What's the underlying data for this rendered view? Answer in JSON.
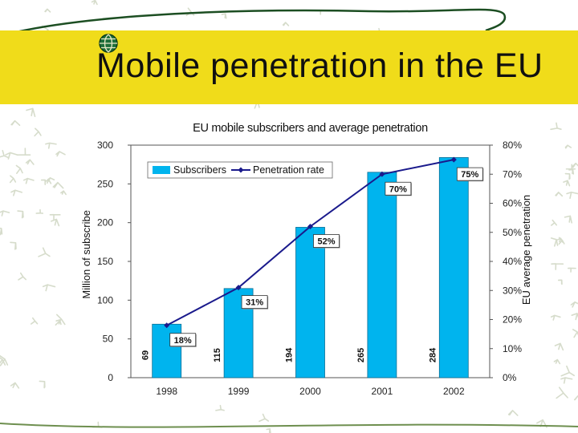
{
  "slide": {
    "title": "Mobile penetration in the EU"
  },
  "colors": {
    "band": "#f0dc1a",
    "bar": "#00b4ee",
    "line": "#1a1a8c",
    "doodle": "#d6dccb"
  },
  "chart_data": {
    "type": "bar",
    "title": "EU mobile subscribers and average penetration",
    "categories": [
      "1998",
      "1999",
      "2000",
      "2001",
      "2002"
    ],
    "series": [
      {
        "name": "Subscribers",
        "type": "bar",
        "axis": "left",
        "values": [
          69,
          115,
          194,
          265,
          284
        ],
        "labels": [
          "69",
          "115",
          "194",
          "265",
          "284"
        ]
      },
      {
        "name": "Penetration rate",
        "type": "line",
        "axis": "right",
        "values": [
          18,
          31,
          52,
          70,
          75
        ],
        "labels": [
          "18%",
          "31%",
          "52%",
          "70%",
          "75%"
        ]
      }
    ],
    "ylabel": "Million of subscribe",
    "y2label": "EU average penetration",
    "ylim": [
      0,
      300
    ],
    "y2lim": [
      0,
      80
    ],
    "yticks": [
      "0",
      "50",
      "100",
      "150",
      "200",
      "250",
      "300"
    ],
    "y2ticks": [
      "0%",
      "10%",
      "20%",
      "30%",
      "40%",
      "50%",
      "60%",
      "70%",
      "80%"
    ],
    "legend": [
      "Subscribers",
      "Penetration rate"
    ],
    "legend_position": "top-left"
  }
}
